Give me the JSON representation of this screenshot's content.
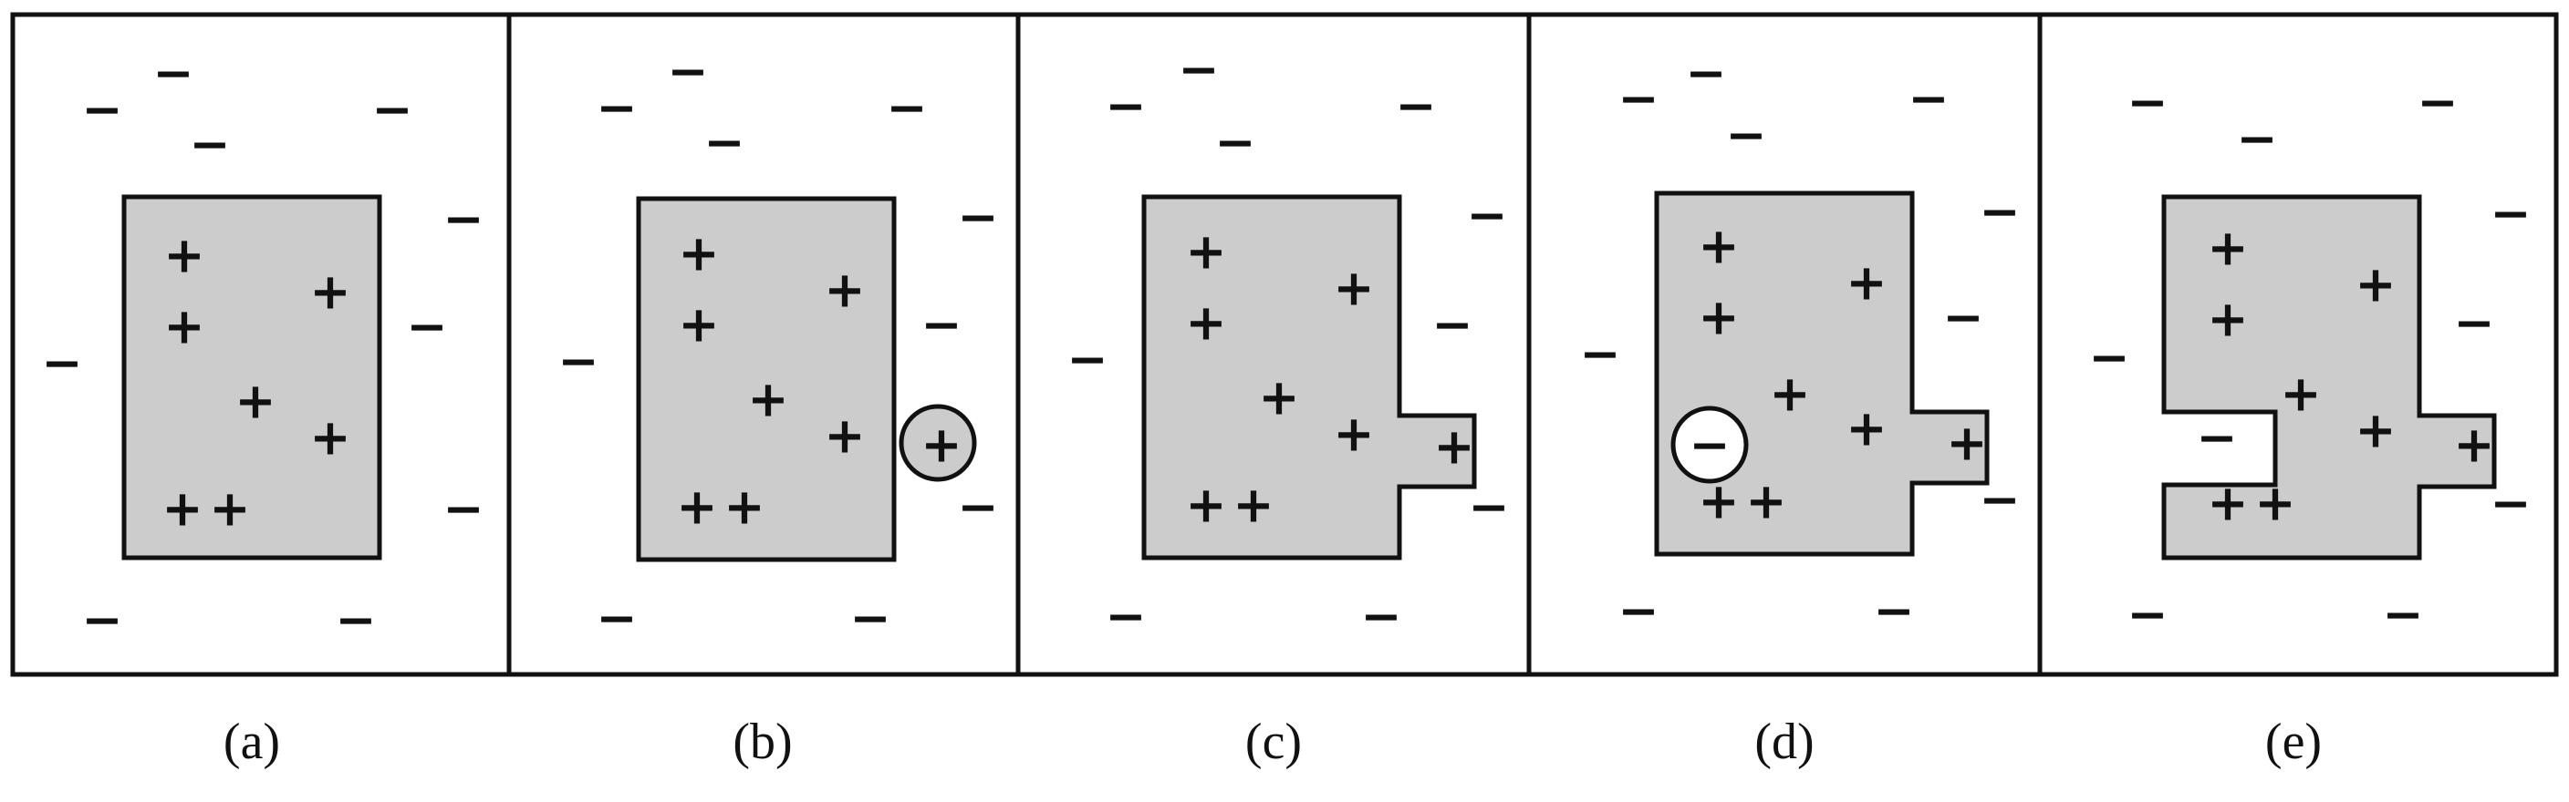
{
  "panels": [
    {
      "caption": "(a)",
      "region_sign": "+",
      "outside_sign": "−",
      "bubble": null
    },
    {
      "caption": "(b)",
      "region_sign": "+",
      "outside_sign": "−",
      "bubble": {
        "sign": "+",
        "fill": "#cccccc"
      }
    },
    {
      "caption": "(c)",
      "region_sign": "+",
      "outside_sign": "−",
      "bubble": null
    },
    {
      "caption": "(d)",
      "region_sign": "+",
      "outside_sign": "−",
      "bubble": {
        "sign": "−",
        "fill": "#ffffff"
      }
    },
    {
      "caption": "(e)",
      "region_sign": "+",
      "outside_sign": "−",
      "bubble": null
    }
  ],
  "colors": {
    "region_fill": "#cccccc",
    "outline": "#111111",
    "background": "#ffffff"
  }
}
